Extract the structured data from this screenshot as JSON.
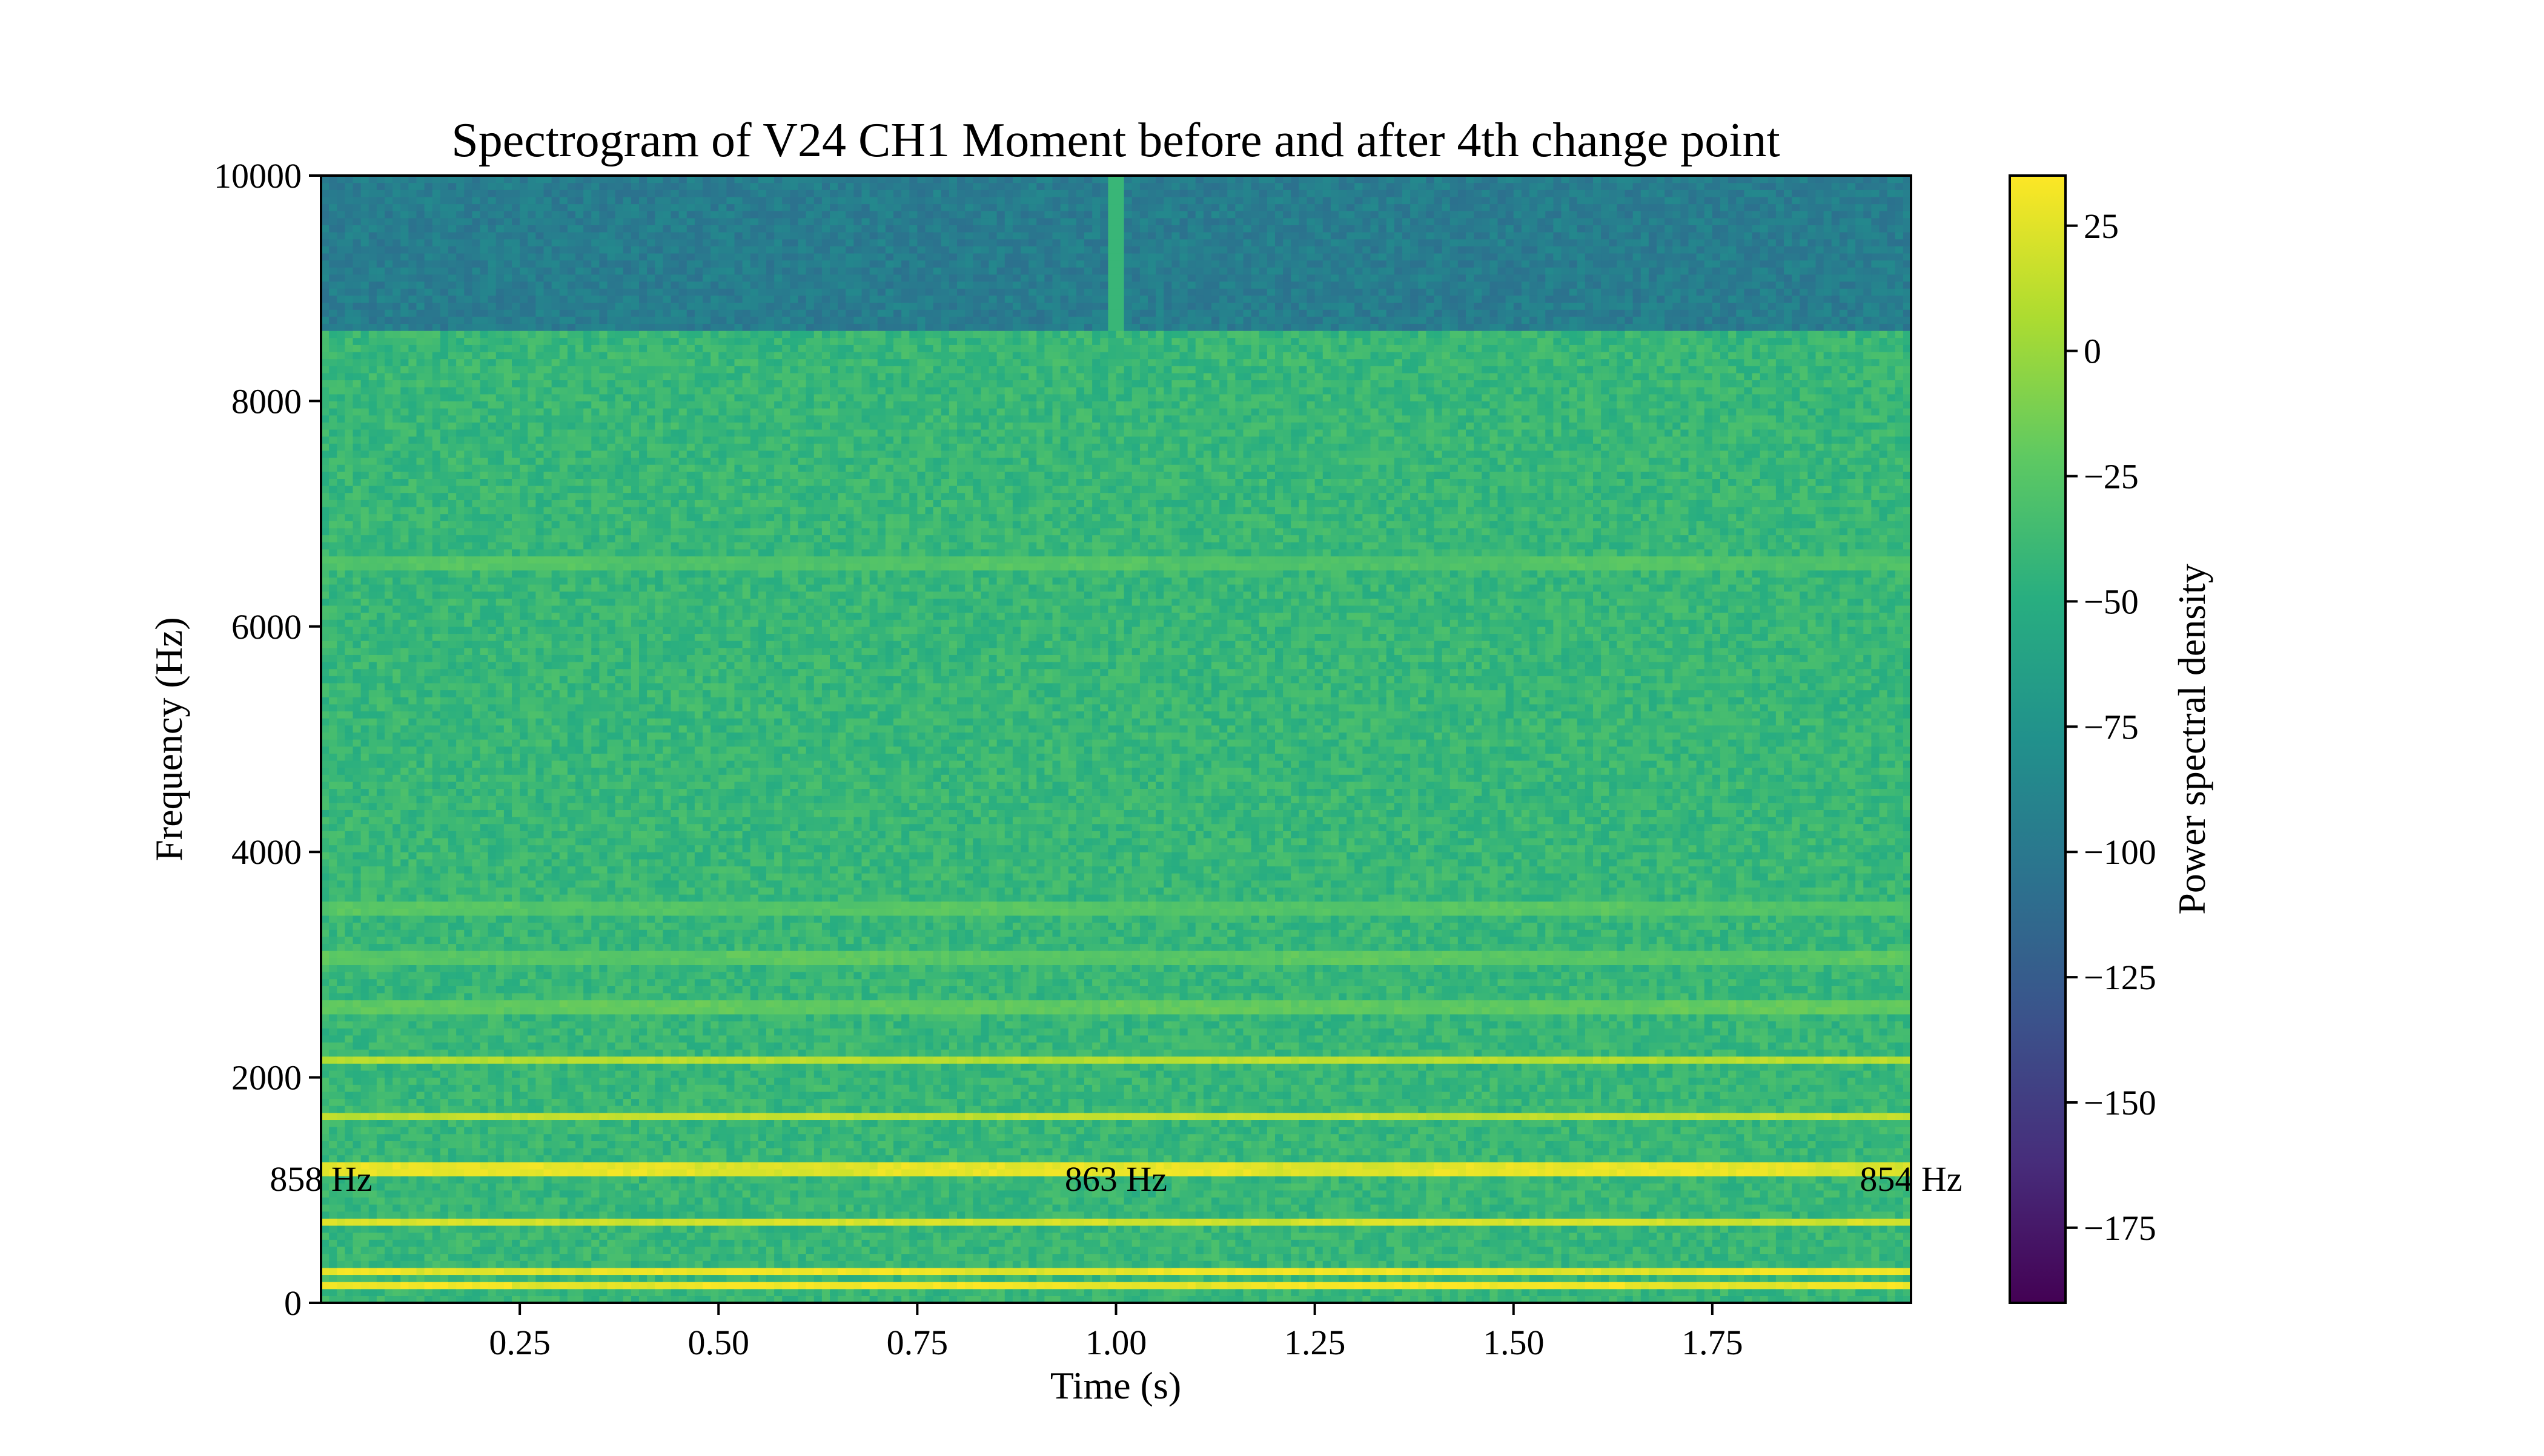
{
  "chart_data": {
    "type": "heatmap",
    "title": "Spectrogram of V24 CH1 Moment before and after 4th change point",
    "xlabel": "Time (s)",
    "ylabel": "Frequency (Hz)",
    "xlim": [
      0.0,
      2.0
    ],
    "ylim": [
      0,
      10000
    ],
    "x_ticks": [
      0.25,
      0.5,
      0.75,
      1.0,
      1.25,
      1.5,
      1.75
    ],
    "x_tick_labels": [
      "0.25",
      "0.50",
      "0.75",
      "1.00",
      "1.25",
      "1.50",
      "1.75"
    ],
    "y_ticks": [
      0,
      2000,
      4000,
      6000,
      8000,
      10000
    ],
    "y_tick_labels": [
      "0",
      "2000",
      "4000",
      "6000",
      "8000",
      "10000"
    ],
    "colormap": "viridis",
    "colorbar": {
      "label": "Power spectral density",
      "range": [
        -190,
        35
      ],
      "ticks": [
        25,
        0,
        -25,
        -50,
        -75,
        -100,
        -125,
        -150,
        -175
      ],
      "tick_labels": [
        "25",
        "0",
        "−25",
        "−50",
        "−75",
        "−100",
        "−125",
        "−150",
        "−175"
      ]
    },
    "annotations": [
      {
        "text": "858 Hz",
        "x": 0.0,
        "y": 1100
      },
      {
        "text": "863 Hz",
        "x": 1.0,
        "y": 1100
      },
      {
        "text": "854 Hz",
        "x": 2.0,
        "y": 1100
      }
    ],
    "bands": [
      {
        "freq": 150,
        "psd": 32
      },
      {
        "freq": 270,
        "psd": 30
      },
      {
        "freq": 730,
        "psd": 22
      },
      {
        "freq": 1200,
        "psd": 28
      },
      {
        "freq": 1670,
        "psd": 16
      },
      {
        "freq": 2150,
        "psd": 12
      },
      {
        "freq": 2620,
        "psd": -15
      },
      {
        "freq": 3050,
        "psd": -18
      },
      {
        "freq": 3500,
        "psd": -20
      },
      {
        "freq": 6550,
        "psd": -22
      }
    ],
    "noise_floor": [
      {
        "freq_from": 0,
        "freq_to": 8600,
        "psd": -40
      },
      {
        "freq_from": 8600,
        "freq_to": 10000,
        "psd": -95
      }
    ],
    "vertical_feature": {
      "time": 1.0,
      "freq_from": 8600,
      "freq_to": 10000,
      "psd": -40
    }
  }
}
